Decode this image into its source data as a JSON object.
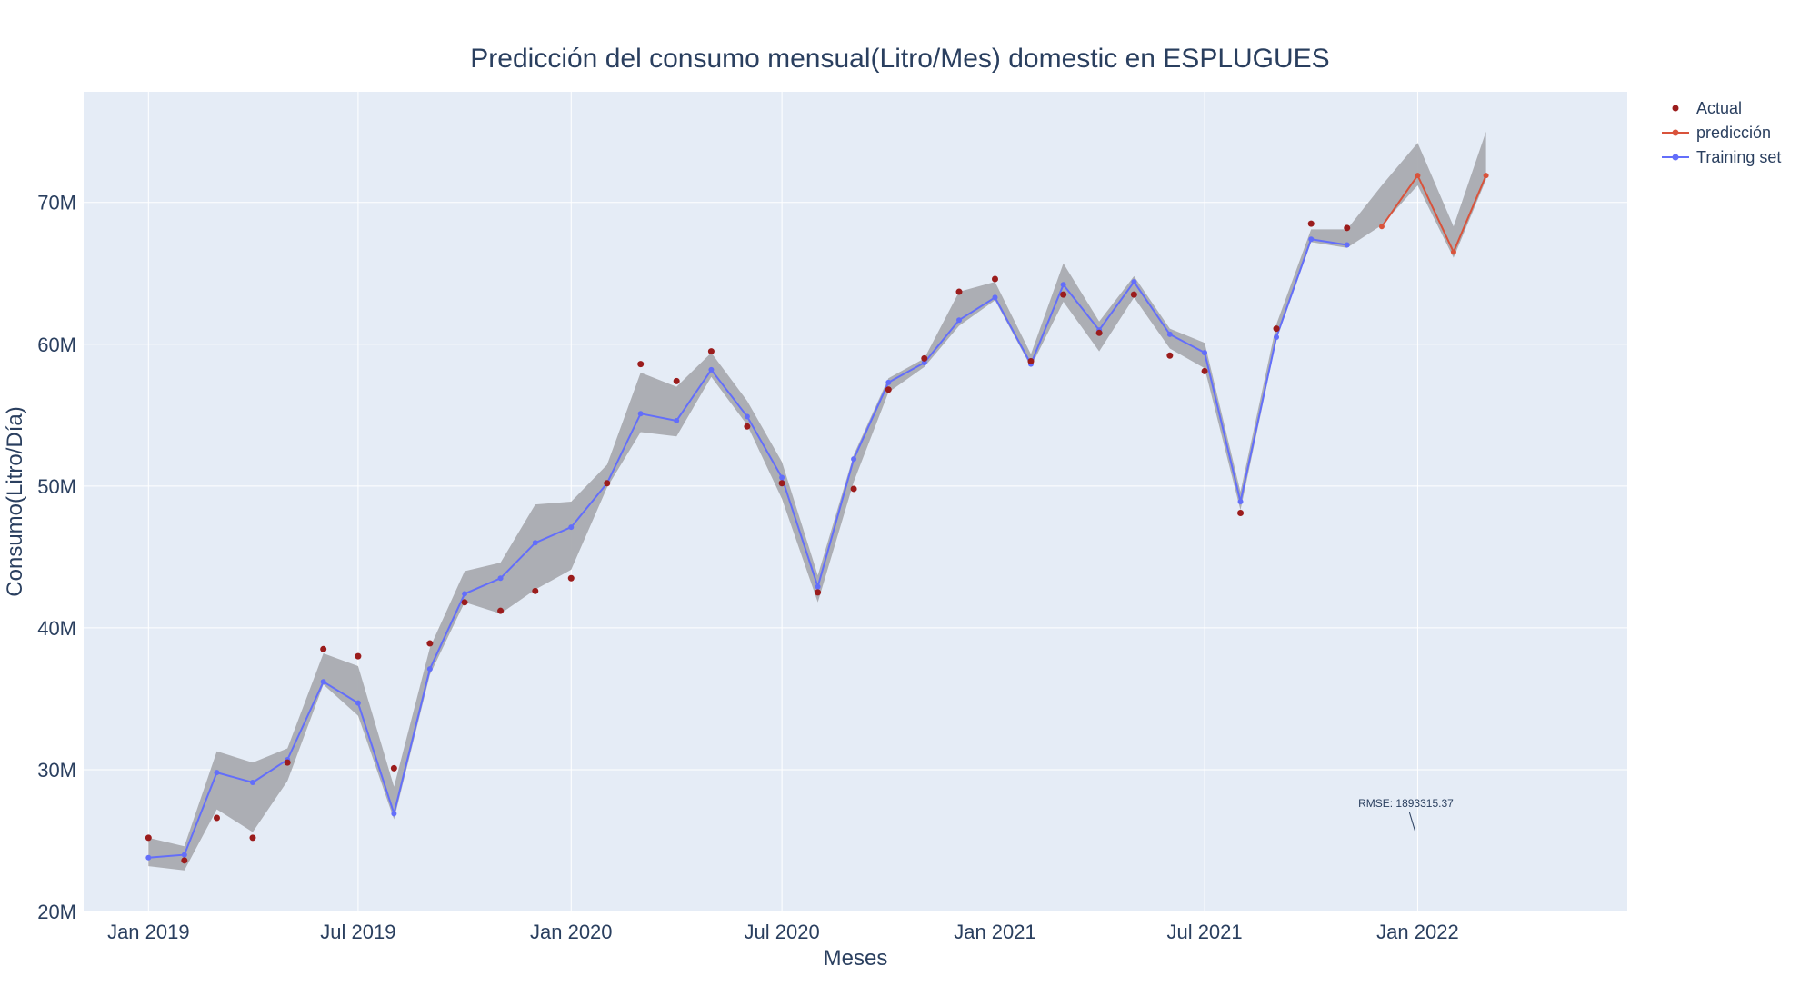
{
  "chart_data": {
    "type": "line",
    "title": "Predicción del consumo mensual(Litro/Mes) domestic en ESPLUGUES",
    "xlabel": "Meses",
    "ylabel": "Consumo(Litro/Día)",
    "x_ticks": [
      {
        "date": "2019-01-01",
        "label": "Jan 2019"
      },
      {
        "date": "2019-07-01",
        "label": "Jul 2019"
      },
      {
        "date": "2020-01-01",
        "label": "Jan 2020"
      },
      {
        "date": "2020-07-01",
        "label": "Jul 2020"
      },
      {
        "date": "2021-01-01",
        "label": "Jan 2021"
      },
      {
        "date": "2021-07-01",
        "label": "Jul 2021"
      },
      {
        "date": "2022-01-01",
        "label": "Jan 2022"
      }
    ],
    "y_ticks": [
      {
        "value": 20000000,
        "label": "20M"
      },
      {
        "value": 30000000,
        "label": "30M"
      },
      {
        "value": 40000000,
        "label": "40M"
      },
      {
        "value": 50000000,
        "label": "50M"
      },
      {
        "value": 60000000,
        "label": "60M"
      },
      {
        "value": 70000000,
        "label": "70M"
      }
    ],
    "xlim": [
      "2018-11-06",
      "2022-07-01"
    ],
    "ylim": [
      20000000,
      77800000
    ],
    "grid": true,
    "legend_position": "top-right",
    "colors": {
      "actual": "#9b1c1c",
      "prediccion": "#d9533b",
      "training": "#636efa",
      "band": "#a9abb0",
      "plot_bg": "#e5ecf6",
      "grid": "#ffffff",
      "text": "#2a3f5f"
    },
    "series": [
      {
        "name": "Actual",
        "mode": "markers",
        "x": [
          "2019-01-01",
          "2019-02-01",
          "2019-03-01",
          "2019-04-01",
          "2019-05-01",
          "2019-06-01",
          "2019-07-01",
          "2019-08-01",
          "2019-09-01",
          "2019-10-01",
          "2019-11-01",
          "2019-12-01",
          "2020-01-01",
          "2020-02-01",
          "2020-03-01",
          "2020-04-01",
          "2020-05-01",
          "2020-06-01",
          "2020-07-01",
          "2020-08-01",
          "2020-09-01",
          "2020-10-01",
          "2020-11-01",
          "2020-12-01",
          "2021-01-01",
          "2021-02-01",
          "2021-03-01",
          "2021-04-01",
          "2021-05-01",
          "2021-06-01",
          "2021-07-01",
          "2021-08-01",
          "2021-09-01",
          "2021-10-01",
          "2021-11-01"
        ],
        "values": [
          25200000,
          23600000,
          26600000,
          25200000,
          30500000,
          38500000,
          38000000,
          30100000,
          38900000,
          41800000,
          41200000,
          42600000,
          43500000,
          50200000,
          58600000,
          57400000,
          59500000,
          54200000,
          50200000,
          42500000,
          49800000,
          56800000,
          59000000,
          63700000,
          64600000,
          58800000,
          63500000,
          60800000,
          63500000,
          59200000,
          58100000,
          48100000,
          61100000,
          68500000,
          68200000
        ]
      },
      {
        "name": "predicción",
        "mode": "lines+markers",
        "x": [
          "2021-12-01",
          "2022-01-01",
          "2022-02-01",
          "2022-03-01"
        ],
        "values": [
          68300000,
          71900000,
          66500000,
          71900000
        ]
      },
      {
        "name": "Training set",
        "mode": "lines+markers",
        "x": [
          "2019-01-01",
          "2019-02-01",
          "2019-03-01",
          "2019-04-01",
          "2019-05-01",
          "2019-06-01",
          "2019-07-01",
          "2019-08-01",
          "2019-09-01",
          "2019-10-01",
          "2019-11-01",
          "2019-12-01",
          "2020-01-01",
          "2020-02-01",
          "2020-03-01",
          "2020-04-01",
          "2020-05-01",
          "2020-06-01",
          "2020-07-01",
          "2020-08-01",
          "2020-09-01",
          "2020-10-01",
          "2020-11-01",
          "2020-12-01",
          "2021-01-01",
          "2021-02-01",
          "2021-03-01",
          "2021-04-01",
          "2021-05-01",
          "2021-06-01",
          "2021-07-01",
          "2021-08-01",
          "2021-09-01",
          "2021-10-01",
          "2021-11-01"
        ],
        "values": [
          23800000,
          24000000,
          29800000,
          29100000,
          30700000,
          36200000,
          34700000,
          26900000,
          37100000,
          42400000,
          43500000,
          46000000,
          47100000,
          50200000,
          55100000,
          54600000,
          58200000,
          54900000,
          50600000,
          42900000,
          51900000,
          57300000,
          58700000,
          61700000,
          63300000,
          58600000,
          64200000,
          61000000,
          64400000,
          60700000,
          59400000,
          48900000,
          60500000,
          67400000,
          67000000
        ]
      }
    ],
    "confidence_band": {
      "x": [
        "2019-01-01",
        "2019-02-01",
        "2019-03-01",
        "2019-04-01",
        "2019-05-01",
        "2019-06-01",
        "2019-07-01",
        "2019-08-01",
        "2019-09-01",
        "2019-10-01",
        "2019-11-01",
        "2019-12-01",
        "2020-01-01",
        "2020-02-01",
        "2020-03-01",
        "2020-04-01",
        "2020-05-01",
        "2020-06-01",
        "2020-07-01",
        "2020-08-01",
        "2020-09-01",
        "2020-10-01",
        "2020-11-01",
        "2020-12-01",
        "2021-01-01",
        "2021-02-01",
        "2021-03-01",
        "2021-04-01",
        "2021-05-01",
        "2021-06-01",
        "2021-07-01",
        "2021-08-01",
        "2021-09-01",
        "2021-10-01",
        "2021-11-01",
        "2021-12-01",
        "2022-01-01",
        "2022-02-01",
        "2022-03-01"
      ],
      "upper": [
        25200000,
        24600000,
        31300000,
        30500000,
        31500000,
        38200000,
        37300000,
        28800000,
        38600000,
        44000000,
        44600000,
        48700000,
        48900000,
        51500000,
        58000000,
        57000000,
        59400000,
        56000000,
        51700000,
        43700000,
        52200000,
        57600000,
        59000000,
        63700000,
        64400000,
        59300000,
        65700000,
        61600000,
        64800000,
        61100000,
        60100000,
        49600000,
        61400000,
        68100000,
        68100000,
        71200000,
        74200000,
        68300000,
        75000000
      ],
      "lower": [
        23200000,
        22900000,
        27200000,
        25600000,
        29200000,
        36000000,
        33800000,
        26500000,
        36700000,
        41800000,
        41000000,
        42700000,
        44100000,
        49900000,
        53800000,
        53500000,
        57700000,
        54300000,
        49100000,
        41800000,
        50300000,
        56600000,
        58400000,
        61300000,
        63100000,
        58400000,
        63000000,
        59500000,
        63300000,
        59700000,
        58300000,
        48300000,
        60300000,
        67200000,
        66800000,
        68400000,
        71200000,
        66100000,
        71600000
      ]
    },
    "annotation": {
      "text": "RMSE: 1893315.37",
      "date": "2022-01-01",
      "value": 25700000
    }
  }
}
